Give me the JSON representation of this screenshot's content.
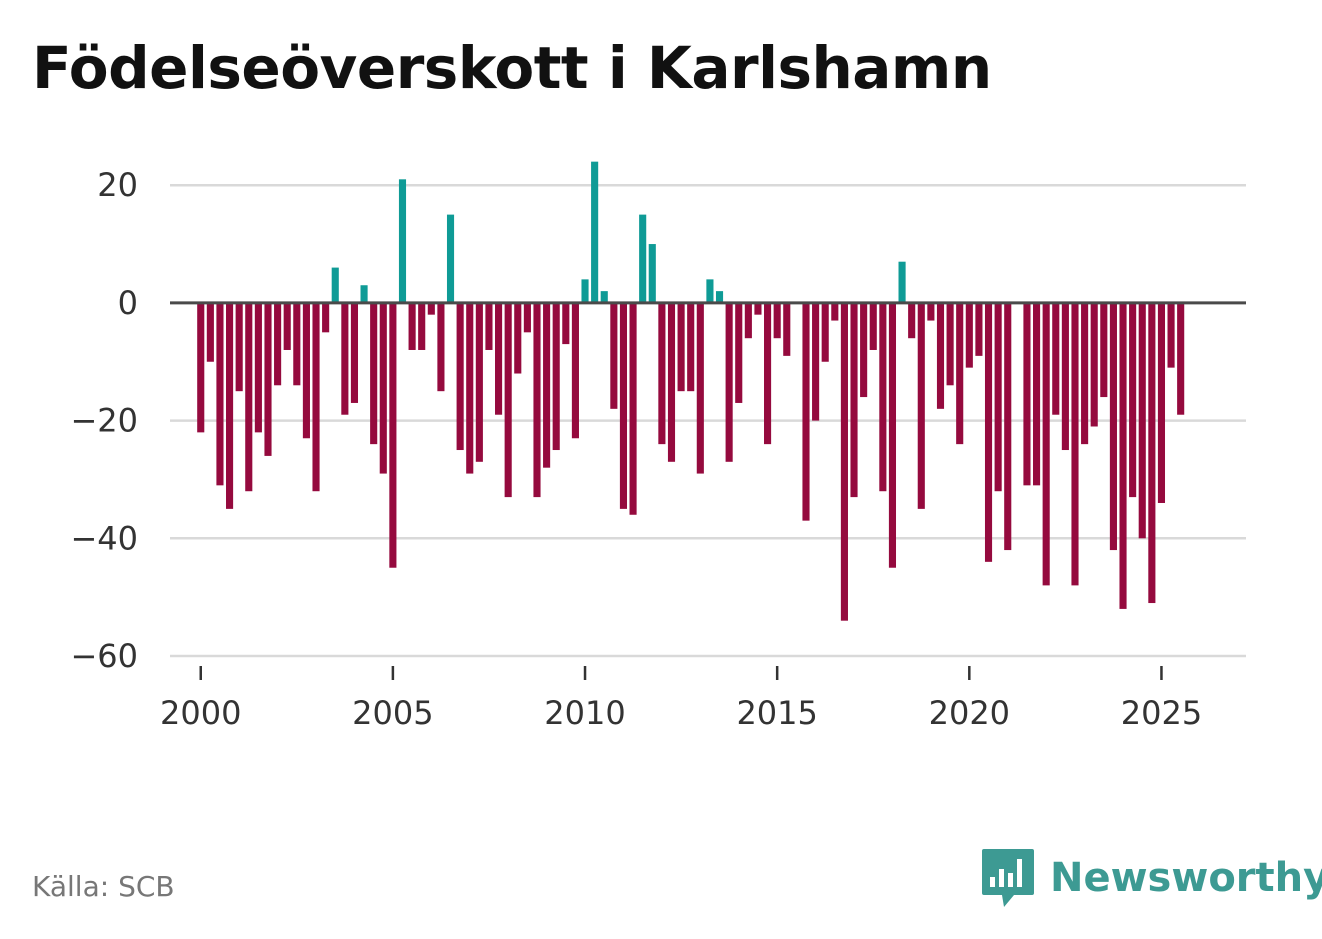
{
  "title": "Födelseöverskott i Karlshamn",
  "source": "Källa: SCB",
  "brand": {
    "name": "Newsworthy",
    "icon": "bar-chart-speech-bubble-icon"
  },
  "colors": {
    "positive": "#0f9b96",
    "negative": "#950a3e",
    "grid": "#d9d9d9",
    "zero_line": "#4a4a4a",
    "brand": "#3d9a93"
  },
  "chart_data": {
    "type": "bar",
    "title": "Födelseöverskott i Karlshamn",
    "xlabel": "",
    "ylabel": "",
    "ylim": [
      -60,
      27
    ],
    "xlim": [
      1999.2,
      2027.2
    ],
    "yticks": [
      20,
      0,
      -20,
      -40,
      -60
    ],
    "ytick_labels": [
      "20",
      "0",
      "−20",
      "−40",
      "−60"
    ],
    "xticks": [
      2000,
      2005,
      2010,
      2015,
      2020,
      2025
    ],
    "xtick_labels": [
      "2000",
      "2005",
      "2010",
      "2015",
      "2020",
      "2025"
    ],
    "grid": true,
    "start_year": 2000,
    "start_quarter": 1,
    "values": [
      -22,
      -10,
      -31,
      -35,
      -15,
      -32,
      -22,
      -26,
      -14,
      -8,
      -14,
      -23,
      -32,
      -5,
      6,
      -19,
      -17,
      3,
      -24,
      -29,
      -45,
      21,
      -8,
      -8,
      -2,
      -15,
      15,
      -25,
      -29,
      -27,
      -8,
      -19,
      -33,
      -12,
      -5,
      -33,
      -28,
      -25,
      -7,
      -23,
      4,
      24,
      2,
      -18,
      -35,
      -36,
      15,
      10,
      -24,
      -27,
      -15,
      -15,
      -29,
      4,
      2,
      -27,
      -17,
      -6,
      -2,
      -24,
      -6,
      -9,
      null,
      -37,
      -20,
      -10,
      -3,
      -54,
      -33,
      -16,
      -8,
      -32,
      -45,
      7,
      -6,
      -35,
      -3,
      -18,
      -14,
      -24,
      -11,
      -9,
      -44,
      -32,
      -42,
      null,
      -31,
      -31,
      -48,
      -19,
      -25,
      -48,
      -24,
      -21,
      -16,
      -42,
      -52,
      -33,
      -40,
      -51,
      -34,
      -11,
      -19
    ]
  }
}
